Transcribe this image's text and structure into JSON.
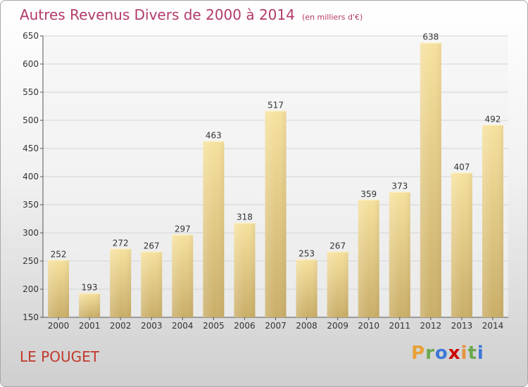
{
  "title": "Autres Revenus Divers de 2000 à 2014",
  "unit_note": "(en milliers d'€)",
  "location": "LE POUGET",
  "logo": {
    "text": "Proxiti",
    "letters": [
      "P",
      "r",
      "o",
      "x",
      "i",
      "t",
      "i"
    ],
    "colors": [
      "#e8a13a",
      "#6aa84f",
      "#3c78d8",
      "#cc0000",
      "#e69138",
      "#6aa84f",
      "#3c78d8"
    ]
  },
  "chart_data": {
    "type": "bar",
    "categories": [
      "2000",
      "2001",
      "2002",
      "2003",
      "2004",
      "2005",
      "2006",
      "2007",
      "2008",
      "2009",
      "2010",
      "2011",
      "2012",
      "2013",
      "2014"
    ],
    "values": [
      252,
      193,
      272,
      267,
      297,
      463,
      318,
      517,
      253,
      267,
      359,
      373,
      638,
      407,
      492
    ],
    "ylim": [
      150,
      650
    ],
    "yticks": [
      150,
      200,
      250,
      300,
      350,
      400,
      450,
      500,
      550,
      600,
      650
    ],
    "grid": true,
    "bar_color": "#e8cf85",
    "title": "Autres Revenus Divers de 2000 à 2014",
    "xlabel": "",
    "ylabel": ""
  }
}
